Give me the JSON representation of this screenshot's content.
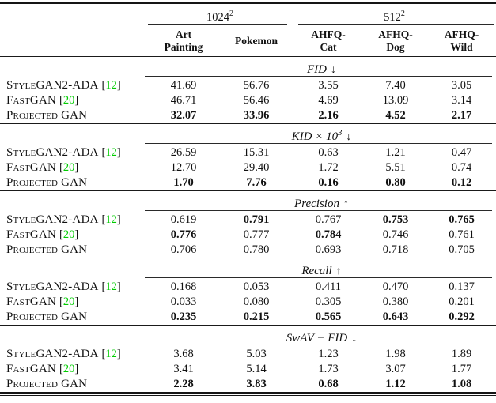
{
  "page": {
    "background": "#ffffff",
    "text_color": "#111111"
  },
  "citation": {
    "open": "[",
    "close": "]",
    "color": "#00cc00"
  },
  "table": {
    "group_headers": [
      {
        "label": "1024",
        "sup": "2"
      },
      {
        "label": "512",
        "sup": "2"
      }
    ],
    "columns": [
      {
        "line1": "Art",
        "line2": "Painting"
      },
      {
        "line1": "Pokemon",
        "line2": ""
      },
      {
        "line1": "AHFQ-",
        "line2": "Cat"
      },
      {
        "line1": "AFHQ-",
        "line2": "Dog"
      },
      {
        "line1": "AFHQ-",
        "line2": "Wild"
      }
    ],
    "sections": [
      {
        "title": "FID",
        "sup": "",
        "arrow": "↓",
        "rows": [
          {
            "label": "StyleGAN2-ADA",
            "cite": "12",
            "values": [
              "41.69",
              "56.76",
              "3.55",
              "7.40",
              "3.05"
            ],
            "bold": [
              false,
              false,
              false,
              false,
              false
            ]
          },
          {
            "label": "FastGAN",
            "cite": "20",
            "values": [
              "46.71",
              "56.46",
              "4.69",
              "13.09",
              "3.14"
            ],
            "bold": [
              false,
              false,
              false,
              false,
              false
            ]
          },
          {
            "label": "Projected GAN",
            "cite": null,
            "values": [
              "32.07",
              "33.96",
              "2.16",
              "4.52",
              "2.17"
            ],
            "bold": [
              true,
              true,
              true,
              true,
              true
            ]
          }
        ]
      },
      {
        "title": "KID × 10",
        "sup": "3",
        "arrow": "↓",
        "rows": [
          {
            "label": "StyleGAN2-ADA",
            "cite": "12",
            "values": [
              "26.59",
              "15.31",
              "0.63",
              "1.21",
              "0.47"
            ],
            "bold": [
              false,
              false,
              false,
              false,
              false
            ]
          },
          {
            "label": "FastGAN",
            "cite": "20",
            "values": [
              "12.70",
              "29.40",
              "1.72",
              "5.51",
              "0.74"
            ],
            "bold": [
              false,
              false,
              false,
              false,
              false
            ]
          },
          {
            "label": "Projected GAN",
            "cite": null,
            "values": [
              "1.70",
              "7.76",
              "0.16",
              "0.80",
              "0.12"
            ],
            "bold": [
              true,
              true,
              true,
              true,
              true
            ]
          }
        ]
      },
      {
        "title": "Precision",
        "sup": "",
        "arrow": "↑",
        "rows": [
          {
            "label": "StyleGAN2-ADA",
            "cite": "12",
            "values": [
              "0.619",
              "0.791",
              "0.767",
              "0.753",
              "0.765"
            ],
            "bold": [
              false,
              true,
              false,
              true,
              true
            ]
          },
          {
            "label": "FastGAN",
            "cite": "20",
            "values": [
              "0.776",
              "0.777",
              "0.784",
              "0.746",
              "0.761"
            ],
            "bold": [
              true,
              false,
              true,
              false,
              false
            ]
          },
          {
            "label": "Projected GAN",
            "cite": null,
            "values": [
              "0.706",
              "0.780",
              "0.693",
              "0.718",
              "0.705"
            ],
            "bold": [
              false,
              false,
              false,
              false,
              false
            ]
          }
        ]
      },
      {
        "title": "Recall",
        "sup": "",
        "arrow": "↑",
        "rows": [
          {
            "label": "StyleGAN2-ADA",
            "cite": "12",
            "values": [
              "0.168",
              "0.053",
              "0.411",
              "0.470",
              "0.137"
            ],
            "bold": [
              false,
              false,
              false,
              false,
              false
            ]
          },
          {
            "label": "FastGAN",
            "cite": "20",
            "values": [
              "0.033",
              "0.080",
              "0.305",
              "0.380",
              "0.201"
            ],
            "bold": [
              false,
              false,
              false,
              false,
              false
            ]
          },
          {
            "label": "Projected GAN",
            "cite": null,
            "values": [
              "0.235",
              "0.215",
              "0.565",
              "0.643",
              "0.292"
            ],
            "bold": [
              true,
              true,
              true,
              true,
              true
            ]
          }
        ]
      },
      {
        "title": "SwAV − FID",
        "sup": "",
        "arrow": "↓",
        "rows": [
          {
            "label": "StyleGAN2-ADA",
            "cite": "12",
            "values": [
              "3.68",
              "5.03",
              "1.23",
              "1.98",
              "1.89"
            ],
            "bold": [
              false,
              false,
              false,
              false,
              false
            ]
          },
          {
            "label": "FastGAN",
            "cite": "20",
            "values": [
              "3.41",
              "5.14",
              "1.73",
              "3.07",
              "1.77"
            ],
            "bold": [
              false,
              false,
              false,
              false,
              false
            ]
          },
          {
            "label": "Projected GAN",
            "cite": null,
            "values": [
              "2.28",
              "3.83",
              "0.68",
              "1.12",
              "1.08"
            ],
            "bold": [
              true,
              true,
              true,
              true,
              true
            ]
          }
        ]
      }
    ]
  }
}
